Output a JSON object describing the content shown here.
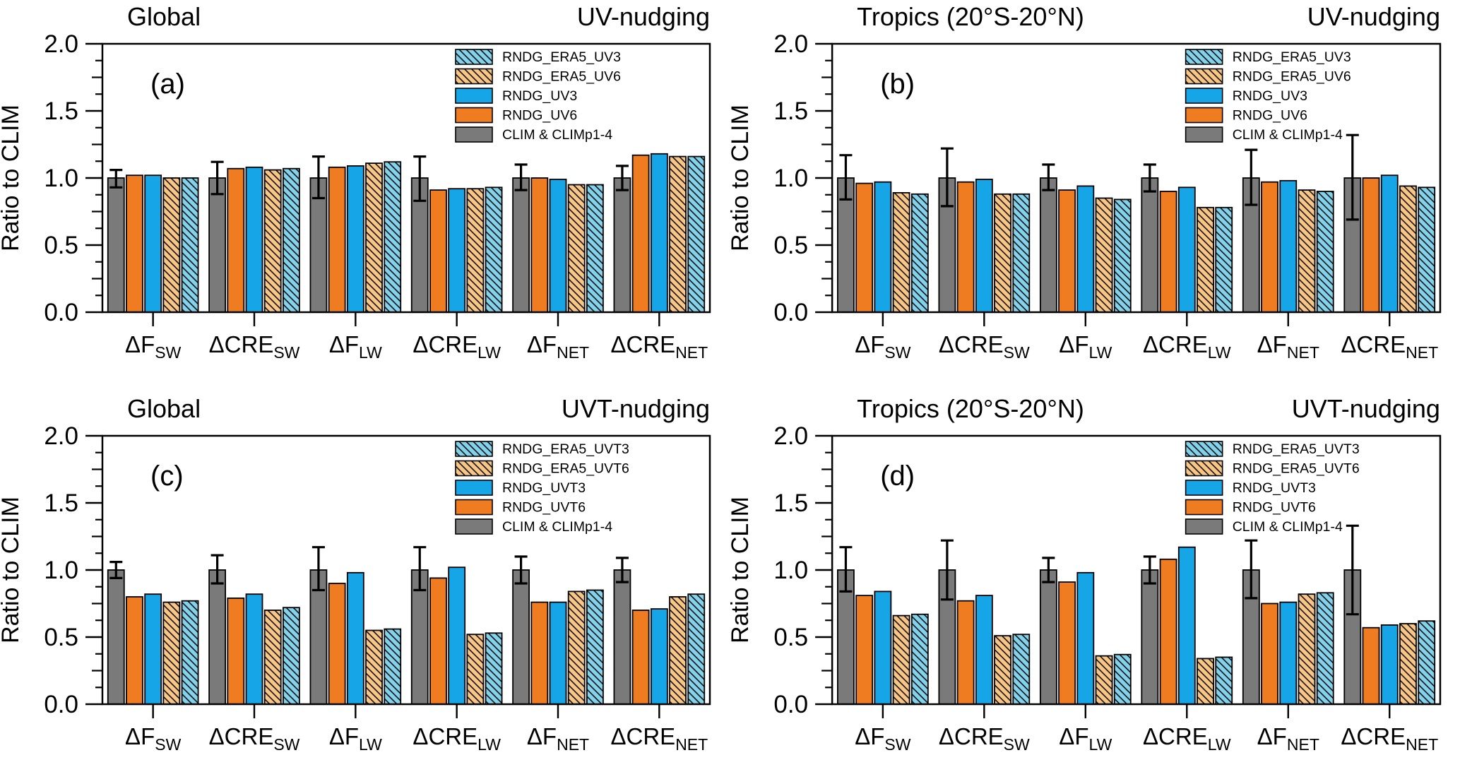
{
  "figure": {
    "ylabel": "Ratio to CLIM",
    "ylim": [
      0,
      2
    ],
    "ytick_labels": [
      "0.0",
      "0.5",
      "1.0",
      "1.5",
      "2.0"
    ],
    "colors": {
      "clim_gray": "#7a7a7a",
      "solid_orange": "#f07c21",
      "solid_blue": "#16a5e6",
      "hatch_orange_fill": "#f8c584",
      "hatch_blue_fill": "#82d2ec",
      "hatch_line": "#111111",
      "axis": "#000000",
      "background": "#ffffff"
    }
  },
  "chart_data": [
    {
      "type": "bar",
      "panel_label": "(a)",
      "title": "Global",
      "annotation": "UV-nudging",
      "ylabel": "Ratio to CLIM",
      "ylim": [
        0,
        2
      ],
      "grid": false,
      "legend_position": "top-center-right",
      "categories": [
        "ΔF_SW",
        "ΔCRE_SW",
        "ΔF_LW",
        "ΔCRE_LW",
        "ΔF_NET",
        "ΔCRE_NET"
      ],
      "legend_order": [
        "RNDG_ERA5_UV3",
        "RNDG_ERA5_UV6",
        "RNDG_UV3",
        "RNDG_UV6",
        "CLIM & CLIMp1-4"
      ],
      "series": [
        {
          "name": "CLIM & CLIMp1-4",
          "style": "gray-solid",
          "values": [
            1.0,
            1.0,
            1.0,
            1.0,
            1.0,
            1.0
          ],
          "err_up": [
            0.06,
            0.12,
            0.16,
            0.16,
            0.1,
            0.09
          ],
          "err_down": [
            0.07,
            0.12,
            0.15,
            0.17,
            0.09,
            0.09
          ]
        },
        {
          "name": "RNDG_UV6",
          "style": "orange-solid",
          "values": [
            1.02,
            1.07,
            1.08,
            0.91,
            1.0,
            1.17
          ]
        },
        {
          "name": "RNDG_UV3",
          "style": "blue-solid",
          "values": [
            1.02,
            1.08,
            1.09,
            0.92,
            0.99,
            1.18
          ]
        },
        {
          "name": "RNDG_ERA5_UV6",
          "style": "orange-hatched",
          "values": [
            1.0,
            1.06,
            1.11,
            0.92,
            0.95,
            1.16
          ]
        },
        {
          "name": "RNDG_ERA5_UV3",
          "style": "blue-hatched",
          "values": [
            1.0,
            1.07,
            1.12,
            0.93,
            0.95,
            1.16
          ]
        }
      ]
    },
    {
      "type": "bar",
      "panel_label": "(b)",
      "title": "Tropics (20°S-20°N)",
      "annotation": "UV-nudging",
      "ylabel": "Ratio to CLIM",
      "ylim": [
        0,
        2
      ],
      "grid": false,
      "legend_position": "top-center-right",
      "categories": [
        "ΔF_SW",
        "ΔCRE_SW",
        "ΔF_LW",
        "ΔCRE_LW",
        "ΔF_NET",
        "ΔCRE_NET"
      ],
      "legend_order": [
        "RNDG_ERA5_UV3",
        "RNDG_ERA5_UV6",
        "RNDG_UV3",
        "RNDG_UV6",
        "CLIM & CLIMp1-4"
      ],
      "series": [
        {
          "name": "CLIM & CLIMp1-4",
          "style": "gray-solid",
          "values": [
            1.0,
            1.0,
            1.0,
            1.0,
            1.0,
            1.0
          ],
          "err_up": [
            0.17,
            0.22,
            0.1,
            0.1,
            0.21,
            0.32
          ],
          "err_down": [
            0.16,
            0.21,
            0.09,
            0.1,
            0.2,
            0.31
          ]
        },
        {
          "name": "RNDG_UV6",
          "style": "orange-solid",
          "values": [
            0.96,
            0.97,
            0.91,
            0.9,
            0.97,
            1.0
          ]
        },
        {
          "name": "RNDG_UV3",
          "style": "blue-solid",
          "values": [
            0.97,
            0.99,
            0.94,
            0.93,
            0.98,
            1.02
          ]
        },
        {
          "name": "RNDG_ERA5_UV6",
          "style": "orange-hatched",
          "values": [
            0.89,
            0.88,
            0.85,
            0.78,
            0.91,
            0.94
          ]
        },
        {
          "name": "RNDG_ERA5_UV3",
          "style": "blue-hatched",
          "values": [
            0.88,
            0.88,
            0.84,
            0.78,
            0.9,
            0.93
          ]
        }
      ]
    },
    {
      "type": "bar",
      "panel_label": "(c)",
      "title": "Global",
      "annotation": "UVT-nudging",
      "ylabel": "Ratio to CLIM",
      "ylim": [
        0,
        2
      ],
      "grid": false,
      "legend_position": "top-center-right",
      "categories": [
        "ΔF_SW",
        "ΔCRE_SW",
        "ΔF_LW",
        "ΔCRE_LW",
        "ΔF_NET",
        "ΔCRE_NET"
      ],
      "legend_order": [
        "RNDG_ERA5_UVT3",
        "RNDG_ERA5_UVT6",
        "RNDG_UVT3",
        "RNDG_UVT6",
        "CLIM & CLIMp1-4"
      ],
      "series": [
        {
          "name": "CLIM & CLIMp1-4",
          "style": "gray-solid",
          "values": [
            1.0,
            1.0,
            1.0,
            1.0,
            1.0,
            1.0
          ],
          "err_up": [
            0.06,
            0.11,
            0.17,
            0.17,
            0.1,
            0.09
          ],
          "err_down": [
            0.06,
            0.1,
            0.15,
            0.15,
            0.1,
            0.09
          ]
        },
        {
          "name": "RNDG_UVT6",
          "style": "orange-solid",
          "values": [
            0.8,
            0.79,
            0.9,
            0.94,
            0.76,
            0.7
          ]
        },
        {
          "name": "RNDG_UVT3",
          "style": "blue-solid",
          "values": [
            0.82,
            0.82,
            0.98,
            1.02,
            0.76,
            0.71
          ]
        },
        {
          "name": "RNDG_ERA5_UVT6",
          "style": "orange-hatched",
          "values": [
            0.76,
            0.7,
            0.55,
            0.52,
            0.84,
            0.8
          ]
        },
        {
          "name": "RNDG_ERA5_UVT3",
          "style": "blue-hatched",
          "values": [
            0.77,
            0.72,
            0.56,
            0.53,
            0.85,
            0.82
          ]
        }
      ]
    },
    {
      "type": "bar",
      "panel_label": "(d)",
      "title": "Tropics (20°S-20°N)",
      "annotation": "UVT-nudging",
      "ylabel": "Ratio to CLIM",
      "ylim": [
        0,
        2
      ],
      "grid": false,
      "legend_position": "top-center-right",
      "categories": [
        "ΔF_SW",
        "ΔCRE_SW",
        "ΔF_LW",
        "ΔCRE_LW",
        "ΔF_NET",
        "ΔCRE_NET"
      ],
      "legend_order": [
        "RNDG_ERA5_UVT3",
        "RNDG_ERA5_UVT6",
        "RNDG_UVT3",
        "RNDG_UVT6",
        "CLIM & CLIMp1-4"
      ],
      "series": [
        {
          "name": "CLIM & CLIMp1-4",
          "style": "gray-solid",
          "values": [
            1.0,
            1.0,
            1.0,
            1.0,
            1.0,
            1.0
          ],
          "err_up": [
            0.17,
            0.22,
            0.09,
            0.1,
            0.22,
            0.33
          ],
          "err_down": [
            0.16,
            0.22,
            0.09,
            0.1,
            0.21,
            0.33
          ]
        },
        {
          "name": "RNDG_UVT6",
          "style": "orange-solid",
          "values": [
            0.81,
            0.77,
            0.91,
            1.08,
            0.75,
            0.57
          ]
        },
        {
          "name": "RNDG_UVT3",
          "style": "blue-solid",
          "values": [
            0.84,
            0.81,
            0.98,
            1.17,
            0.76,
            0.59
          ]
        },
        {
          "name": "RNDG_ERA5_UVT6",
          "style": "orange-hatched",
          "values": [
            0.66,
            0.51,
            0.36,
            0.34,
            0.82,
            0.6
          ]
        },
        {
          "name": "RNDG_ERA5_UVT3",
          "style": "blue-hatched",
          "values": [
            0.67,
            0.52,
            0.37,
            0.35,
            0.83,
            0.62
          ]
        }
      ]
    }
  ]
}
